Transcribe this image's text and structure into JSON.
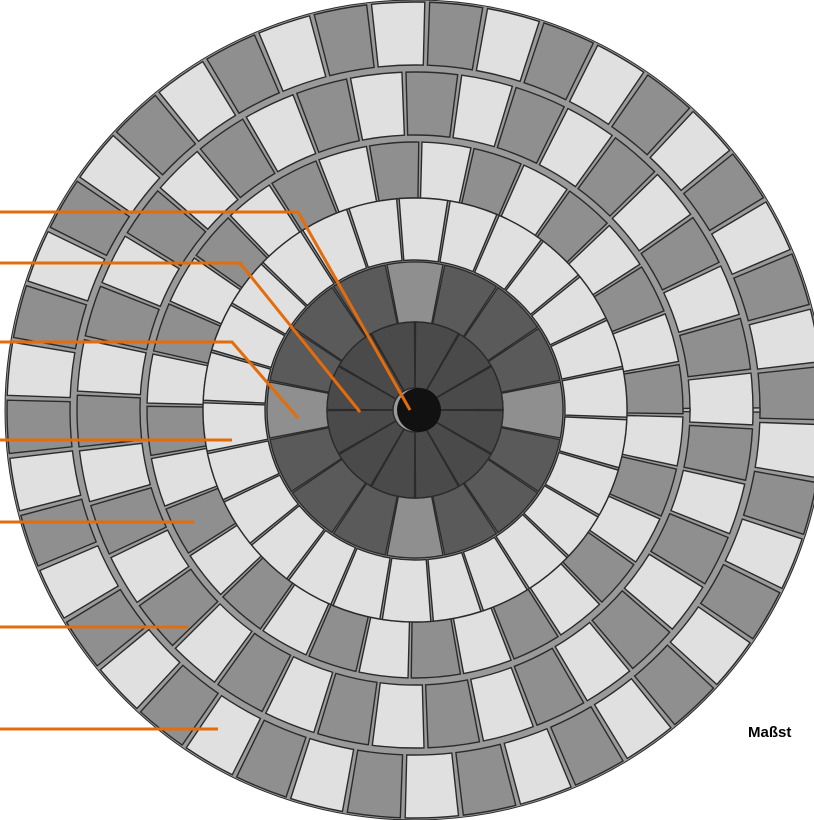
{
  "scale_label": "Maßst",
  "colors": {
    "leader_line": "#e46c0a",
    "tile_light": "#e0e0e0",
    "tile_dark": "#8f8f8f",
    "tile_darker": "#5a5a5a",
    "tile_darkest": "#4a4a4a",
    "center_stone": "#111111",
    "grout": "#2b2b2b"
  },
  "paving": {
    "center_stone": true,
    "inner_ring_segments": 12,
    "middle_ring_segments": 12,
    "outer_dark_ring_segments": 16,
    "light_rings": 4,
    "alternating_rings": 3
  },
  "leader_lines": 7
}
